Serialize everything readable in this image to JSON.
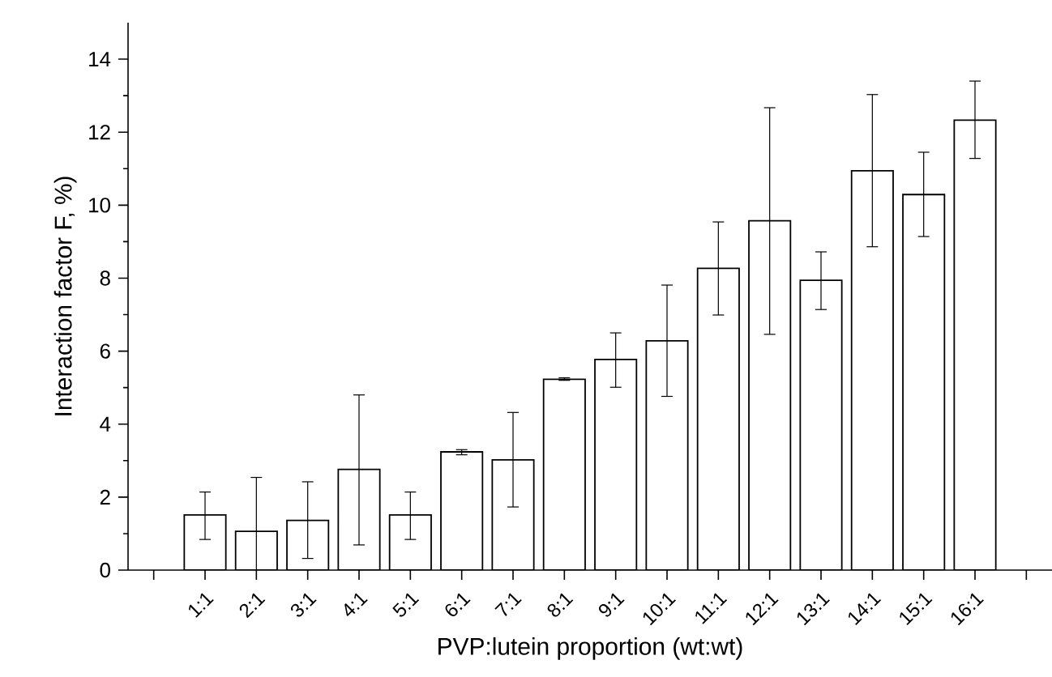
{
  "chart_data": {
    "type": "bar",
    "xlabel": "PVP:lutein proportion (wt:wt)",
    "ylabel": "Interaction factor F, %)",
    "categories": [
      null,
      "1:1",
      "2:1",
      "3:1",
      "4:1",
      "5:1",
      "6:1",
      "7:1",
      "8:1",
      "9:1",
      "10:1",
      "11:1",
      "12:1",
      "13:1",
      "14:1",
      "15:1",
      "16:1",
      null
    ],
    "values": [
      null,
      1.51,
      1.06,
      1.36,
      2.76,
      1.51,
      3.24,
      3.02,
      5.23,
      5.77,
      6.28,
      8.27,
      9.57,
      7.94,
      10.94,
      10.29,
      12.33,
      null
    ],
    "errors": [
      null,
      [
        0.84,
        2.14
      ],
      [
        0,
        2.54
      ],
      [
        0.32,
        2.42
      ],
      [
        0.69,
        4.8
      ],
      [
        0.84,
        2.14
      ],
      [
        3.16,
        3.3
      ],
      [
        1.73,
        4.32
      ],
      [
        5.2,
        5.27
      ],
      [
        5.01,
        6.5
      ],
      [
        4.76,
        7.81
      ],
      [
        6.99,
        9.54
      ],
      [
        6.46,
        12.67
      ],
      [
        7.14,
        8.72
      ],
      [
        8.86,
        13.03
      ],
      [
        9.14,
        11.45
      ],
      [
        11.28,
        13.4
      ],
      null
    ],
    "color": "#ffffff",
    "ylim": [
      0,
      15
    ],
    "yticks": [
      0,
      2,
      4,
      6,
      8,
      10,
      12,
      14
    ]
  }
}
